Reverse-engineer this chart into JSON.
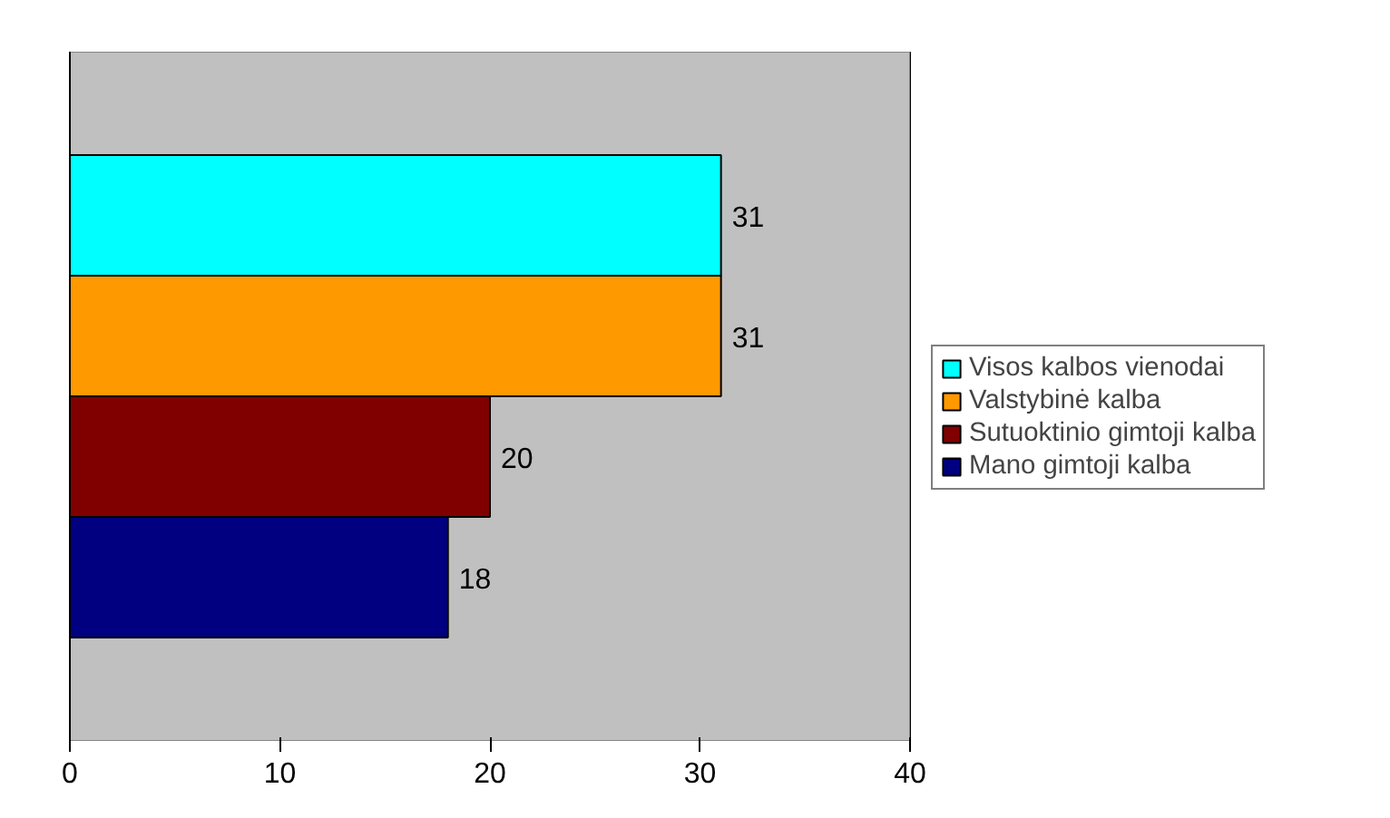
{
  "chart_data": {
    "type": "bar",
    "orientation": "horizontal",
    "categories": [
      null
    ],
    "series": [
      {
        "name": "Visos kalbos vienodai",
        "color": "#00ffff",
        "values": [
          31
        ]
      },
      {
        "name": "Valstybinė kalba",
        "color": "#ff9900",
        "values": [
          31
        ]
      },
      {
        "name": "Sutuoktinio gimtoji kalba",
        "color": "#800000",
        "values": [
          20
        ]
      },
      {
        "name": "Mano gimtoji kalba",
        "color": "#000080",
        "values": [
          18
        ]
      }
    ],
    "xlim": [
      0,
      40
    ],
    "xticks": [
      0,
      10,
      20,
      30,
      40
    ],
    "grid": "x",
    "legend": "right",
    "data_labels": true
  }
}
